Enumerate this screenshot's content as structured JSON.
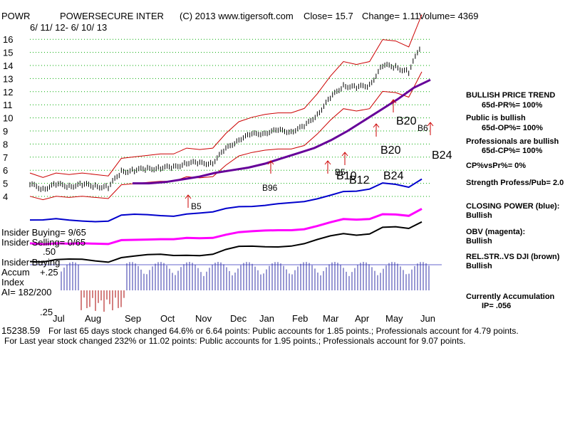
{
  "header": {
    "ticker": "POWR",
    "company": "POWERSECURE INTER",
    "copyright": "(C) 2013 www.tigersoft.com",
    "close": "Close=  15.7",
    "change": "Change= 1.11",
    "volume": "Volume= 4369",
    "date_range": "6/ 11/ 12-  6/ 10/ 13"
  },
  "chart_data": {
    "type": "line",
    "title": "POWR  POWERSECURE INTER",
    "x_labels": [
      "Jul",
      "Aug",
      "Sep",
      "Oct",
      "Nov",
      "Dec",
      "Jan",
      "Feb",
      "Mar",
      "Apr",
      "May",
      "Jun"
    ],
    "y_ticks": [
      4,
      5,
      6,
      7,
      8,
      9,
      10,
      11,
      12,
      13,
      14,
      15,
      16
    ],
    "ylim": [
      4,
      16
    ],
    "series": [
      {
        "name": "price",
        "values": [
          4.9,
          4.6,
          4.9,
          4.8,
          4.9,
          4.8,
          4.7,
          5.9,
          6.0,
          6.1,
          6.2,
          6.2,
          6.6,
          6.5,
          6.6,
          7.6,
          8.4,
          8.7,
          8.9,
          9.0,
          9.0,
          9.3,
          10.3,
          11.5,
          12.5,
          12.3,
          12.5,
          14.0,
          13.9,
          13.5,
          15.7
        ]
      },
      {
        "name": "65-day moving average",
        "values": [
          5.0,
          5.0,
          5.1,
          5.3,
          5.5,
          5.8,
          6.0,
          6.2,
          6.5,
          6.9,
          7.3,
          7.7,
          8.3,
          9.0,
          9.8,
          10.6,
          11.4,
          12.3,
          12.9
        ]
      },
      {
        "name": "closing power",
        "values": []
      },
      {
        "name": "obv",
        "values": []
      }
    ],
    "signals": [
      "B5",
      "B96",
      "B5",
      "B10",
      "B12",
      "B20",
      "B24",
      "B24",
      "B6",
      "B20"
    ],
    "accumulation_index": {
      "labels": [
        ".50",
        "+.25",
        ".25"
      ],
      "ai": "AI= 182/200",
      "ip": "IP= .056"
    }
  },
  "left_labels": {
    "insider_buying": "Insider Buying= 9/65",
    "insider_selling": "Insider Selling= 0/65",
    "insider_buying2": "Insider Buying",
    "accum": "Accum",
    "index": "Index"
  },
  "right_panel": {
    "trend_title": "BULLISH PRICE TREND",
    "pr": "65d-PR%= 100%",
    "public": "Public is bullish",
    "op": "65d-OP%= 100%",
    "professionals": "Professionals are bullish",
    "cp": "65d-CP%= 100%",
    "cpvspr": "CP%vsPr%=  0%",
    "strength": "Strength Profess/Pub= 2.0",
    "closing_power": "CLOSING POWER (blue):",
    "closing_val": "Bullish",
    "obv": "OBV (magenta):",
    "obv_val": "Bullish",
    "relstr": "REL.STR..VS DJI (brown)",
    "relstr_val": "Bullish",
    "accum": "Currently Accumulation"
  },
  "footer": {
    "garbled": "15238.59",
    "line1": "For last 65 days stock changed  64.6% or  6.64 points:  Public accounts for  1.85 points.;  Professionals account for  4.79 points.",
    "line2": "For Last year stock changed  232% or  11.02 points:  Public accounts for  1.95 points.;  Professionals account for  9.07 points."
  },
  "colors": {
    "red": "#cc0000",
    "blue": "#0000cc",
    "purple": "#660099",
    "magenta": "#ff00ff",
    "grid": "#00aa00",
    "acc": "#3333aa",
    "neg": "#aa0000"
  }
}
